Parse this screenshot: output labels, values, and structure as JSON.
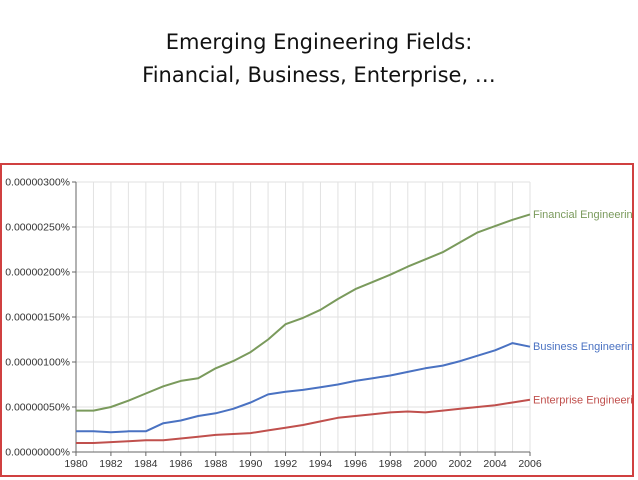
{
  "slide": {
    "title_line1": "Emerging Engineering Fields:",
    "title_line2": "Financial, Business, Enterprise, …"
  },
  "colors": {
    "frame": "#d04040",
    "grid": "#e2e2e2",
    "axis": "#666666",
    "financial": "#7a9a5c",
    "business": "#4a72c2",
    "enterprise": "#c0504d"
  },
  "chart_data": {
    "type": "line",
    "title": "",
    "xlabel": "",
    "ylabel": "",
    "xlim": [
      1980,
      2006
    ],
    "ylim": [
      0,
      3e-06
    ],
    "grid": true,
    "legend_placement": "line-end labels",
    "y_ticks": [
      {
        "value": 3e-06,
        "label": "0.00000300%"
      },
      {
        "value": 2.5e-06,
        "label": "0.00000250%"
      },
      {
        "value": 2e-06,
        "label": "0.00000200%"
      },
      {
        "value": 1.5e-06,
        "label": "0.00000150%"
      },
      {
        "value": 1e-06,
        "label": "0.00000100%"
      },
      {
        "value": 5e-07,
        "label": "0.00000050%"
      },
      {
        "value": 0,
        "label": "0.00000000%"
      }
    ],
    "x_ticks": [
      {
        "value": 1980,
        "label": "1980"
      },
      {
        "value": 1982,
        "label": "1982"
      },
      {
        "value": 1984,
        "label": "1984"
      },
      {
        "value": 1986,
        "label": "1986"
      },
      {
        "value": 1988,
        "label": "1988"
      },
      {
        "value": 1990,
        "label": "1990"
      },
      {
        "value": 1992,
        "label": "1992"
      },
      {
        "value": 1994,
        "label": "1994"
      },
      {
        "value": 1996,
        "label": "1996"
      },
      {
        "value": 1998,
        "label": "1998"
      },
      {
        "value": 2000,
        "label": "2000"
      },
      {
        "value": 2002,
        "label": "2002"
      },
      {
        "value": 2004,
        "label": "2004"
      },
      {
        "value": 2006,
        "label": "2006"
      }
    ],
    "x": [
      1980,
      1981,
      1982,
      1983,
      1984,
      1985,
      1986,
      1987,
      1988,
      1989,
      1990,
      1991,
      1992,
      1993,
      1994,
      1995,
      1996,
      1997,
      1998,
      1999,
      2000,
      2001,
      2002,
      2003,
      2004,
      2005,
      2006
    ],
    "series": [
      {
        "name": "Financial Engineering",
        "color_key": "financial",
        "values": [
          4.6e-07,
          4.6e-07,
          5e-07,
          5.7e-07,
          6.5e-07,
          7.3e-07,
          7.9e-07,
          8.2e-07,
          9.3e-07,
          1.01e-06,
          1.11e-06,
          1.25e-06,
          1.42e-06,
          1.49e-06,
          1.58e-06,
          1.7e-06,
          1.81e-06,
          1.89e-06,
          1.97e-06,
          2.06e-06,
          2.14e-06,
          2.22e-06,
          2.33e-06,
          2.44e-06,
          2.51e-06,
          2.58e-06,
          2.64e-06
        ]
      },
      {
        "name": "Business Engineering",
        "color_key": "business",
        "values": [
          2.3e-07,
          2.3e-07,
          2.2e-07,
          2.3e-07,
          2.3e-07,
          3.2e-07,
          3.5e-07,
          4e-07,
          4.3e-07,
          4.8e-07,
          5.5e-07,
          6.4e-07,
          6.7e-07,
          6.9e-07,
          7.2e-07,
          7.5e-07,
          7.9e-07,
          8.2e-07,
          8.5e-07,
          8.9e-07,
          9.3e-07,
          9.6e-07,
          1.01e-06,
          1.07e-06,
          1.13e-06,
          1.21e-06,
          1.17e-06
        ]
      },
      {
        "name": "Enterprise Engineering",
        "color_key": "enterprise",
        "values": [
          1e-07,
          1e-07,
          1.1e-07,
          1.2e-07,
          1.3e-07,
          1.3e-07,
          1.5e-07,
          1.7e-07,
          1.9e-07,
          2e-07,
          2.1e-07,
          2.4e-07,
          2.7e-07,
          3e-07,
          3.4e-07,
          3.8e-07,
          4e-07,
          4.2e-07,
          4.4e-07,
          4.5e-07,
          4.4e-07,
          4.6e-07,
          4.8e-07,
          5e-07,
          5.2e-07,
          5.5e-07,
          5.8e-07
        ]
      }
    ]
  }
}
